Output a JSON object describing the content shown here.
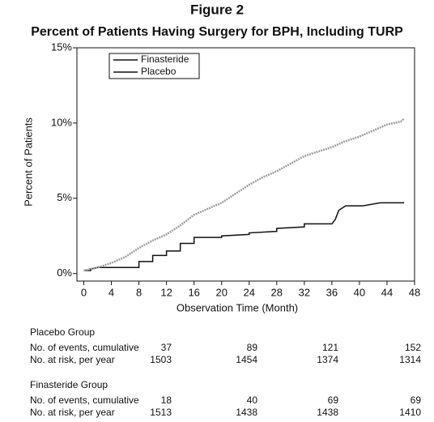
{
  "chart_data": {
    "type": "line",
    "title": "Figure 2",
    "subtitle": "Percent of Patients Having Surgery for BPH, Including TURP",
    "x_label": "Observation Time (Month)",
    "y_label": "Percent of Patients",
    "xlim": [
      -1,
      48
    ],
    "xticks": [
      0,
      4,
      8,
      12,
      16,
      20,
      24,
      28,
      32,
      36,
      40,
      44,
      48
    ],
    "ylim": [
      -0.5,
      15
    ],
    "yticks": [
      {
        "value": 0,
        "label": "0%"
      },
      {
        "value": 5,
        "label": "5%"
      },
      {
        "value": 10,
        "label": "10%"
      },
      {
        "value": 15,
        "label": "15%"
      }
    ],
    "legend": "top-left",
    "series": [
      {
        "name": "Finasteride",
        "color": "#111111",
        "x": [
          0,
          1,
          1,
          2,
          8,
          8,
          10,
          10,
          12,
          12,
          14,
          14,
          16,
          16,
          20,
          20,
          24,
          24,
          28,
          28,
          32,
          32,
          36,
          36.5,
          37,
          38,
          40.5,
          43,
          46.5
        ],
        "values": [
          0.2,
          0.2,
          0.3,
          0.4,
          0.4,
          0.8,
          0.8,
          1.2,
          1.2,
          1.5,
          1.5,
          2.0,
          2.0,
          2.4,
          2.4,
          2.5,
          2.6,
          2.7,
          2.8,
          3.0,
          3.1,
          3.3,
          3.3,
          3.6,
          4.2,
          4.5,
          4.5,
          4.7,
          4.7
        ]
      },
      {
        "name": "Placebo",
        "color": "#a0a0a0",
        "x": [
          0,
          2,
          4,
          6,
          8,
          10,
          12,
          14,
          16,
          18,
          20,
          22,
          24,
          26,
          28,
          30,
          32,
          34,
          36,
          38,
          40,
          42,
          44,
          46,
          46.5
        ],
        "values": [
          0.2,
          0.4,
          0.7,
          1.1,
          1.7,
          2.2,
          2.6,
          3.2,
          3.9,
          4.3,
          4.7,
          5.3,
          5.9,
          6.4,
          6.8,
          7.3,
          7.8,
          8.1,
          8.4,
          8.8,
          9.1,
          9.5,
          9.9,
          10.1,
          10.3
        ]
      }
    ]
  },
  "table": {
    "groups": [
      {
        "title": "Placebo Group",
        "rows": [
          {
            "label": "No. of events, cumulative",
            "values": [
              37,
              89,
              121,
              152
            ]
          },
          {
            "label": "No. at risk, per year",
            "values": [
              1503,
              1454,
              1374,
              1314
            ]
          }
        ]
      },
      {
        "title": "Finasteride Group",
        "rows": [
          {
            "label": "No. of events, cumulative",
            "values": [
              18,
              40,
              69,
              69
            ]
          },
          {
            "label": "No. at risk, per year",
            "values": [
              1513,
              1438,
              1438,
              1410
            ]
          }
        ]
      }
    ]
  }
}
